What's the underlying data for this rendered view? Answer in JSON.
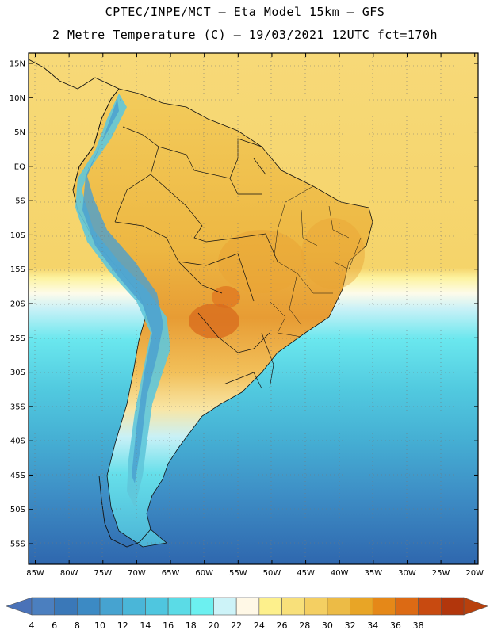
{
  "header": {
    "line1": "CPTEC/INPE/MCT –  Eta Model 15km – GFS",
    "line2": "2 Metre Temperature (C) – 19/03/2021 12UTC fct=170h"
  },
  "map": {
    "lat_labels": [
      "15N",
      "10N",
      "5N",
      "EQ",
      "5S",
      "10S",
      "15S",
      "20S",
      "25S",
      "30S",
      "35S",
      "40S",
      "45S",
      "50S",
      "55S"
    ],
    "lon_labels": [
      "85W",
      "80W",
      "75W",
      "70W",
      "65W",
      "60W",
      "55W",
      "50W",
      "45W",
      "40W",
      "35W",
      "30W",
      "25W",
      "20W"
    ],
    "lat_range": [
      -58,
      16.5
    ],
    "lon_range": [
      -86,
      -19.5
    ]
  },
  "colorbar": {
    "labels": [
      "4",
      "6",
      "8",
      "10",
      "12",
      "14",
      "16",
      "18",
      "20",
      "22",
      "24",
      "26",
      "28",
      "30",
      "32",
      "34",
      "36",
      "38"
    ],
    "colors": [
      "#4b7fbf",
      "#3a78b8",
      "#3c8ac4",
      "#46a3d0",
      "#4ab6d8",
      "#4fc6df",
      "#5bdbe6",
      "#6cf0f0",
      "#cdf3f8",
      "#fff8e6",
      "#fdf08c",
      "#f8e07a",
      "#f4cf62",
      "#ecbb46",
      "#e8a526",
      "#e58818",
      "#dc6a14",
      "#c84a10",
      "#b2360c"
    ],
    "min_color": "#4a72b8",
    "max_color": "#b8400c"
  },
  "colors": {
    "land_hot": "#e9a83a",
    "land_warm": "#f0c257",
    "ocean_warm": "#f6d778",
    "andes": "#67c7d8"
  }
}
